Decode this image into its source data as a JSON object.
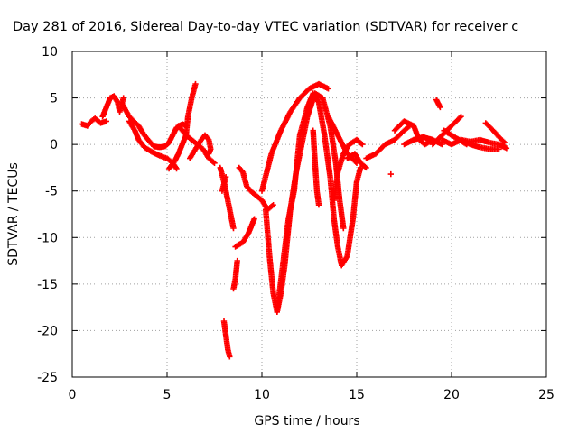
{
  "chart_data": {
    "type": "scatter",
    "title": "Day 281 of 2016, Sidereal Day-to-day VTEC variation (SDTVAR) for receiver c",
    "xlabel": "GPS time / hours",
    "ylabel": "SDTVAR / TECUs",
    "xlim": [
      0,
      25
    ],
    "ylim": [
      -25,
      10
    ],
    "xticks": [
      0,
      5,
      10,
      15,
      20,
      25
    ],
    "yticks": [
      10,
      5,
      0,
      -5,
      -10,
      -15,
      -20,
      -25
    ],
    "grid": true,
    "marker": "plus",
    "color": "#ff0000",
    "tracks": [
      [
        [
          0.5,
          2.2
        ],
        [
          0.8,
          2.0
        ],
        [
          1.0,
          2.5
        ],
        [
          1.2,
          2.8
        ],
        [
          1.5,
          2.3
        ],
        [
          1.8,
          2.5
        ]
      ],
      [
        [
          1.6,
          3.0
        ],
        [
          1.8,
          4.0
        ],
        [
          2.0,
          5.0
        ],
        [
          2.2,
          5.2
        ],
        [
          2.4,
          4.5
        ],
        [
          2.5,
          3.5
        ],
        [
          2.7,
          5.0
        ]
      ],
      [
        [
          2.6,
          4.5
        ],
        [
          3.0,
          3.0
        ],
        [
          3.5,
          2.0
        ],
        [
          3.8,
          1.0
        ],
        [
          4.0,
          0.5
        ],
        [
          4.3,
          -0.2
        ],
        [
          4.6,
          -0.3
        ],
        [
          4.9,
          -0.2
        ],
        [
          5.1,
          0.2
        ],
        [
          5.3,
          1.0
        ],
        [
          5.5,
          1.8
        ],
        [
          5.8,
          2.2
        ],
        [
          6.0,
          2.0
        ]
      ],
      [
        [
          3.0,
          2.5
        ],
        [
          3.3,
          1.5
        ],
        [
          3.5,
          0.5
        ],
        [
          3.8,
          -0.3
        ],
        [
          4.2,
          -0.8
        ],
        [
          4.6,
          -1.2
        ],
        [
          5.0,
          -1.5
        ],
        [
          5.3,
          -2.0
        ],
        [
          5.5,
          -2.6
        ]
      ],
      [
        [
          5.1,
          -2.6
        ],
        [
          5.4,
          -1.8
        ],
        [
          5.6,
          -1.0
        ],
        [
          5.8,
          0.0
        ],
        [
          6.0,
          1.0
        ],
        [
          6.1,
          3.0
        ],
        [
          6.3,
          5.0
        ],
        [
          6.5,
          6.5
        ]
      ],
      [
        [
          5.6,
          2.0
        ],
        [
          6.0,
          1.0
        ],
        [
          6.3,
          0.5
        ],
        [
          6.6,
          0.0
        ],
        [
          6.9,
          -0.5
        ],
        [
          7.2,
          -1.5
        ],
        [
          7.5,
          -2.0
        ]
      ],
      [
        [
          6.2,
          -1.5
        ],
        [
          6.5,
          -0.5
        ],
        [
          6.8,
          0.5
        ],
        [
          7.0,
          1.0
        ],
        [
          7.2,
          0.5
        ],
        [
          7.3,
          -0.5
        ],
        [
          7.2,
          -1.0
        ]
      ],
      [
        [
          7.8,
          -2.5
        ],
        [
          8.0,
          -4.0
        ],
        [
          8.2,
          -6.0
        ],
        [
          8.4,
          -8.0
        ],
        [
          8.5,
          -9.0
        ]
      ],
      [
        [
          7.9,
          -5.0
        ],
        [
          8.1,
          -3.5
        ]
      ],
      [
        [
          8.0,
          -19.0
        ],
        [
          8.1,
          -20.5
        ],
        [
          8.2,
          -22.0
        ],
        [
          8.3,
          -22.8
        ]
      ],
      [
        [
          8.5,
          -15.5
        ],
        [
          8.6,
          -14.5
        ],
        [
          8.7,
          -12.5
        ]
      ],
      [
        [
          8.6,
          -11.0
        ],
        [
          9.0,
          -10.5
        ],
        [
          9.3,
          -9.5
        ],
        [
          9.6,
          -8.0
        ]
      ],
      [
        [
          8.8,
          -2.5
        ],
        [
          9.0,
          -3.0
        ],
        [
          9.2,
          -4.5
        ],
        [
          9.4,
          -5.0
        ],
        [
          9.7,
          -5.5
        ],
        [
          10.0,
          -6.0
        ],
        [
          10.3,
          -7.0
        ],
        [
          10.6,
          -6.5
        ]
      ],
      [
        [
          10.0,
          -5.0
        ],
        [
          10.5,
          -1.0
        ],
        [
          11.0,
          1.5
        ],
        [
          11.5,
          3.5
        ],
        [
          12.0,
          5.0
        ],
        [
          12.5,
          6.0
        ],
        [
          13.0,
          6.5
        ],
        [
          13.5,
          6.0
        ]
      ],
      [
        [
          10.2,
          -7.0
        ],
        [
          10.4,
          -12.0
        ],
        [
          10.6,
          -16.0
        ],
        [
          10.8,
          -18.0
        ],
        [
          11.0,
          -16.0
        ],
        [
          11.2,
          -13.0
        ],
        [
          11.4,
          -9.0
        ],
        [
          11.5,
          -7.0
        ],
        [
          11.8,
          -3.0
        ],
        [
          12.1,
          0.0
        ],
        [
          12.4,
          3.0
        ],
        [
          12.8,
          5.5
        ],
        [
          13.2,
          5.0
        ],
        [
          13.6,
          2.0
        ],
        [
          13.9,
          -2.0
        ],
        [
          14.1,
          -6.0
        ],
        [
          14.3,
          -9.0
        ]
      ],
      [
        [
          10.8,
          -18.0
        ],
        [
          11.1,
          -13.0
        ],
        [
          11.4,
          -8.0
        ],
        [
          11.7,
          -5.0
        ],
        [
          12.0,
          1.0
        ],
        [
          12.4,
          4.0
        ],
        [
          12.7,
          5.5
        ],
        [
          13.0,
          4.5
        ],
        [
          13.3,
          1.0
        ],
        [
          13.6,
          -3.5
        ],
        [
          13.8,
          -8.0
        ],
        [
          14.0,
          -11.0
        ],
        [
          14.2,
          -13.0
        ],
        [
          14.5,
          -12.0
        ],
        [
          14.8,
          -8.0
        ],
        [
          15.0,
          -4.0
        ],
        [
          15.2,
          -2.5
        ]
      ],
      [
        [
          12.7,
          1.5
        ],
        [
          12.8,
          -2.0
        ],
        [
          12.9,
          -5.0
        ],
        [
          13.0,
          -6.5
        ]
      ],
      [
        [
          13.5,
          3.0
        ],
        [
          14.0,
          1.0
        ],
        [
          14.5,
          -1.0
        ],
        [
          15.0,
          -2.0
        ]
      ],
      [
        [
          13.8,
          -6.0
        ],
        [
          14.0,
          -3.0
        ],
        [
          14.3,
          -1.0
        ],
        [
          14.6,
          0.0
        ],
        [
          15.0,
          0.5
        ],
        [
          15.3,
          0.0
        ]
      ],
      [
        [
          14.5,
          -1.5
        ],
        [
          14.9,
          -1.0
        ],
        [
          15.2,
          -2.0
        ],
        [
          15.5,
          -2.5
        ]
      ],
      [
        [
          15.5,
          -1.5
        ],
        [
          16.0,
          -1.0
        ],
        [
          16.5,
          0.0
        ],
        [
          17.0,
          0.5
        ],
        [
          17.5,
          1.5
        ],
        [
          17.8,
          2.0
        ]
      ],
      [
        [
          16.8,
          -3.2
        ]
      ],
      [
        [
          17.0,
          1.5
        ],
        [
          17.5,
          2.5
        ],
        [
          18.0,
          2.0
        ],
        [
          18.3,
          0.5
        ],
        [
          18.6,
          0.0
        ],
        [
          19.0,
          0.5
        ]
      ],
      [
        [
          17.5,
          0.0
        ],
        [
          18.0,
          0.5
        ],
        [
          18.5,
          0.8
        ],
        [
          19.0,
          0.5
        ],
        [
          19.5,
          0.0
        ]
      ],
      [
        [
          19.2,
          4.8
        ],
        [
          19.4,
          4.0
        ]
      ],
      [
        [
          19.0,
          0.0
        ],
        [
          19.5,
          1.0
        ],
        [
          20.0,
          2.0
        ],
        [
          20.5,
          3.0
        ]
      ],
      [
        [
          19.6,
          1.5
        ],
        [
          20.0,
          1.0
        ],
        [
          20.4,
          0.5
        ],
        [
          20.8,
          0.0
        ]
      ],
      [
        [
          19.5,
          0.5
        ],
        [
          20.0,
          0.0
        ],
        [
          20.5,
          0.5
        ],
        [
          21.0,
          0.3
        ],
        [
          21.5,
          0.5
        ],
        [
          22.0,
          0.2
        ],
        [
          22.5,
          0.0
        ],
        [
          22.9,
          -0.4
        ]
      ],
      [
        [
          20.5,
          0.5
        ],
        [
          21.0,
          0.0
        ],
        [
          21.5,
          -0.3
        ],
        [
          22.0,
          -0.5
        ],
        [
          22.5,
          -0.5
        ]
      ],
      [
        [
          21.8,
          2.3
        ],
        [
          22.2,
          1.5
        ],
        [
          22.5,
          0.8
        ],
        [
          22.8,
          0.2
        ]
      ]
    ]
  }
}
